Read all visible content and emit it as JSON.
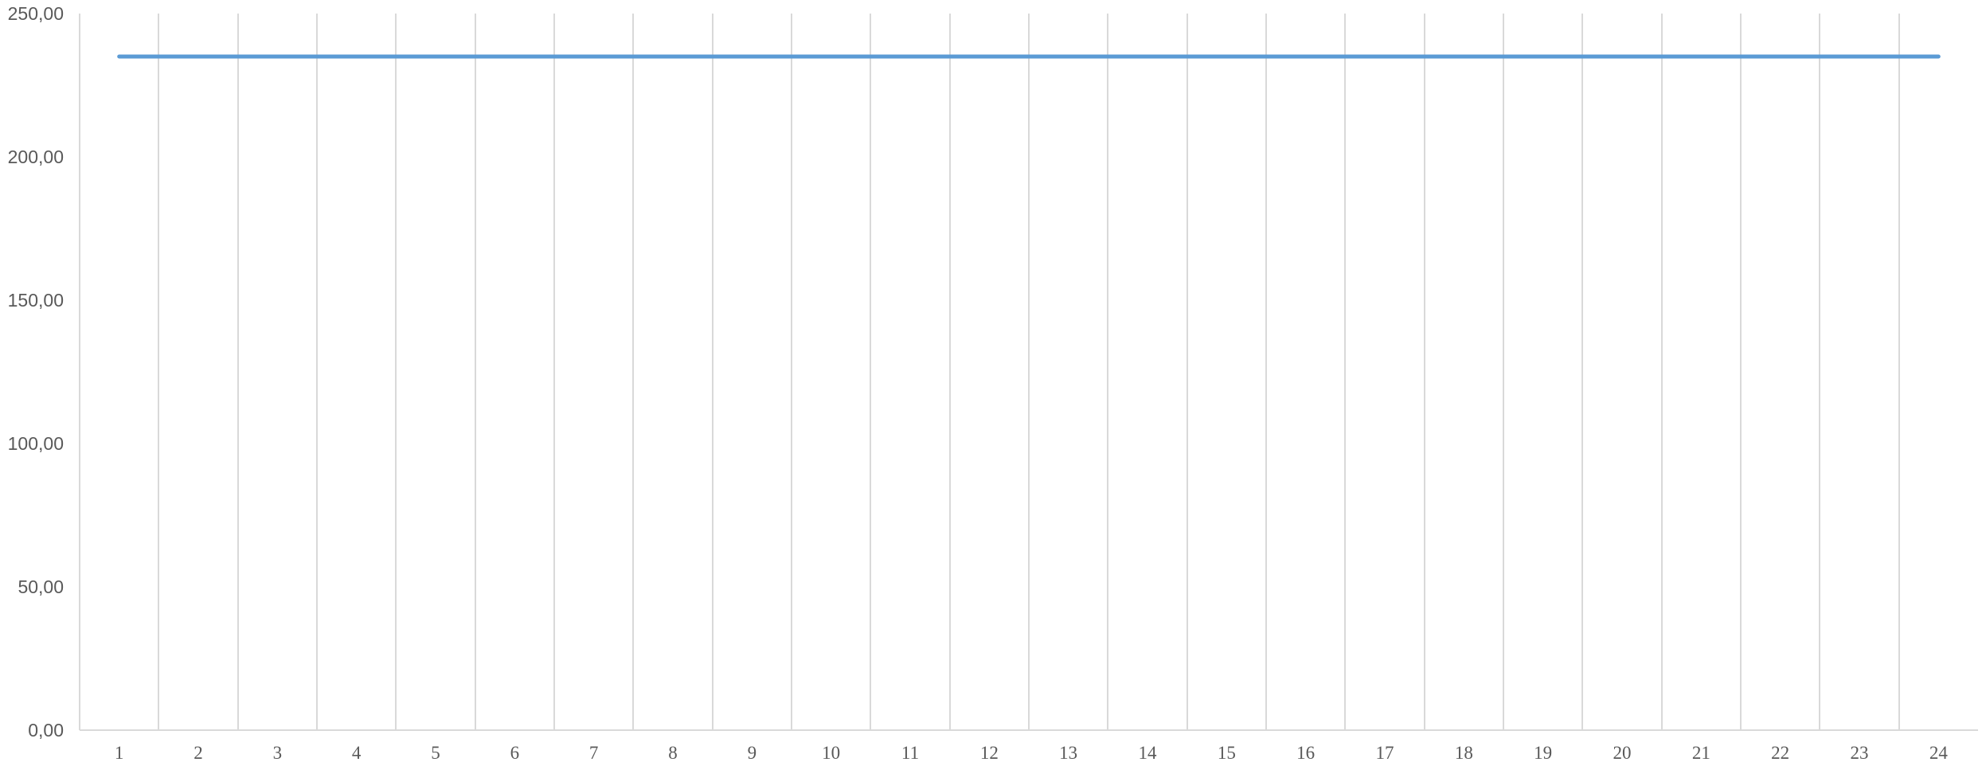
{
  "chart_data": {
    "type": "line",
    "title": "",
    "xlabel": "",
    "ylabel": "",
    "categories": [
      "1",
      "2",
      "3",
      "4",
      "5",
      "6",
      "7",
      "8",
      "9",
      "10",
      "11",
      "12",
      "13",
      "14",
      "15",
      "16",
      "17",
      "18",
      "19",
      "20",
      "21",
      "22",
      "23",
      "24"
    ],
    "series": [
      {
        "color": "#5b9bd5",
        "values": [
          235,
          235,
          235,
          235,
          235,
          235,
          235,
          235,
          235,
          235,
          235,
          235,
          235,
          235,
          235,
          235,
          235,
          235,
          235,
          235,
          235,
          235,
          235,
          235
        ]
      }
    ],
    "ylim": [
      0,
      250
    ],
    "y_ticks": [
      0,
      50,
      100,
      150,
      200,
      250
    ],
    "y_tick_labels": [
      "0,00",
      "50,00",
      "100,00",
      "150,00",
      "200,00",
      "250,00"
    ],
    "grid": {
      "vertical": true,
      "horizontal": false,
      "color": "#d9d9d9"
    },
    "legend": "none"
  }
}
